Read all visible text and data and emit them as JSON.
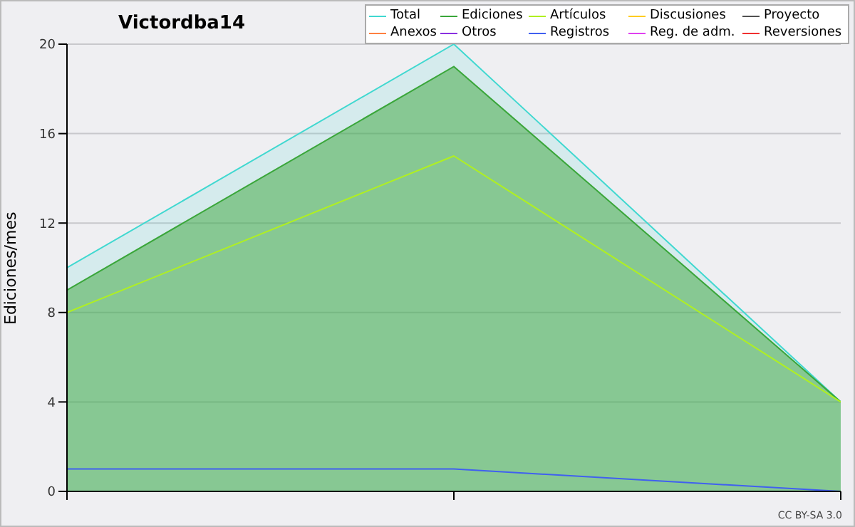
{
  "chart_data": {
    "type": "area",
    "title": "Victordba14",
    "ylabel": "Ediciones/mes",
    "categories": [
      null,
      null,
      null
    ],
    "ylim": [
      0,
      20
    ],
    "yticks": [
      0,
      4,
      8,
      12,
      16,
      20
    ],
    "grid": "y",
    "legend": "top right",
    "marker": "none",
    "annotations": [
      "CC BY-SA 3.0"
    ],
    "series": [
      {
        "name": "Total",
        "color": "#40d8d0",
        "values": [
          10,
          20,
          4
        ]
      },
      {
        "name": "Ediciones",
        "color": "#3aa63a",
        "values": [
          9,
          19,
          4
        ]
      },
      {
        "name": "Artículos",
        "type": "line",
        "color": "#b0f020",
        "values": [
          8,
          15,
          4
        ]
      },
      {
        "name": "Discusiones",
        "type": "line",
        "color": "#ffcc20",
        "values": [
          null,
          null,
          null
        ]
      },
      {
        "name": "Proyecto",
        "type": "line",
        "color": "#505050",
        "values": [
          null,
          null,
          null
        ]
      },
      {
        "name": "Anexos",
        "type": "line",
        "color": "#ff8040",
        "values": [
          null,
          null,
          null
        ]
      },
      {
        "name": "Otros",
        "type": "line",
        "color": "#8a30e0",
        "values": [
          null,
          null,
          null
        ]
      },
      {
        "name": "Registros",
        "type": "line",
        "color": "#4060f0",
        "values": [
          1,
          1,
          0
        ]
      },
      {
        "name": "Reg. de adm.",
        "type": "line",
        "color": "#e040f0",
        "values": [
          null,
          null,
          null
        ]
      },
      {
        "name": "Reversiones",
        "type": "line",
        "color": "#f03030",
        "values": [
          null,
          null,
          null
        ]
      }
    ]
  }
}
